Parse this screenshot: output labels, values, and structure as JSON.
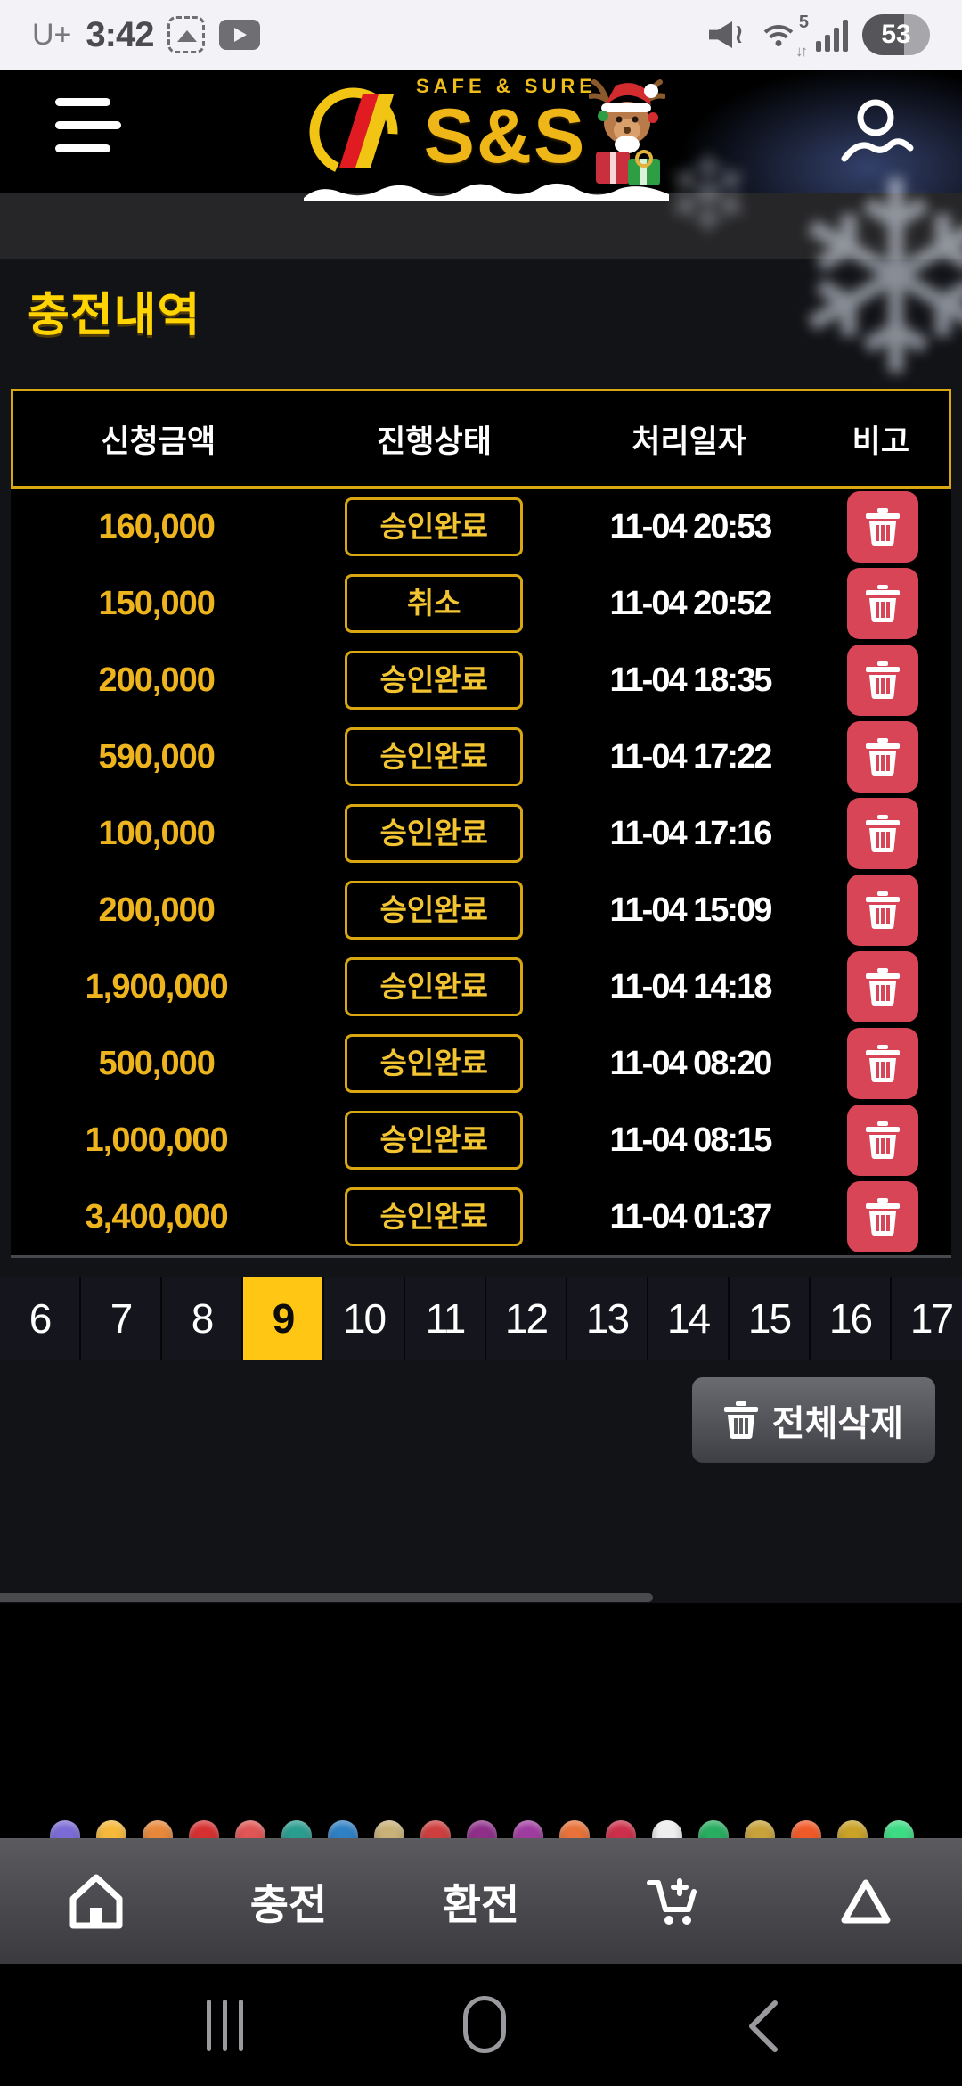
{
  "status_bar": {
    "carrier": "U+",
    "time": "3:42",
    "battery_percent": "53",
    "wifi_badge": "5",
    "wifi_arrows": "↓↑"
  },
  "header": {
    "tagline": "SAFE & SURE",
    "brand": "S&S"
  },
  "page": {
    "title": "충전내역"
  },
  "table": {
    "headers": [
      "신청금액",
      "진행상태",
      "처리일자",
      "비고"
    ],
    "rows": [
      {
        "amount": "160,000",
        "status": "승인완료",
        "date": "11-04 20:53"
      },
      {
        "amount": "150,000",
        "status": "취소",
        "date": "11-04 20:52"
      },
      {
        "amount": "200,000",
        "status": "승인완료",
        "date": "11-04 18:35"
      },
      {
        "amount": "590,000",
        "status": "승인완료",
        "date": "11-04 17:22"
      },
      {
        "amount": "100,000",
        "status": "승인완료",
        "date": "11-04 17:16"
      },
      {
        "amount": "200,000",
        "status": "승인완료",
        "date": "11-04 15:09"
      },
      {
        "amount": "1,900,000",
        "status": "승인완료",
        "date": "11-04 14:18"
      },
      {
        "amount": "500,000",
        "status": "승인완료",
        "date": "11-04 08:20"
      },
      {
        "amount": "1,000,000",
        "status": "승인완료",
        "date": "11-04 08:15"
      },
      {
        "amount": "3,400,000",
        "status": "승인완료",
        "date": "11-04 01:37"
      }
    ]
  },
  "pagination": {
    "pages": [
      "6",
      "7",
      "8",
      "9",
      "10",
      "11",
      "12",
      "13",
      "14",
      "15",
      "16",
      "17"
    ],
    "active": "9"
  },
  "actions": {
    "delete_all": "전체삭제"
  },
  "bottom_nav": {
    "deposit": "충전",
    "exchange": "환전"
  },
  "colors": {
    "accent_yellow": "#ffc613",
    "gold": "#eab616",
    "title_yellow": "#ffd400",
    "trash_red": "#d84556",
    "table_border": "#d8a712",
    "nav_gradient_top": "#5b5b5f",
    "nav_gradient_bottom": "#3b3b3f"
  },
  "footer": {
    "provider_colors": [
      "#7b6bd6",
      "#f6b93b",
      "#e8883a",
      "#d63031",
      "#e05555",
      "#2a9d8f",
      "#2f80c4",
      "#c9b178",
      "#cf3e3e",
      "#8e2f8a",
      "#a03ca0",
      "#e8723a",
      "#cc2f4a",
      "#efefef",
      "#27ae60",
      "#c8a23a",
      "#f05a28",
      "#c9a227",
      "#3ddc84"
    ]
  }
}
